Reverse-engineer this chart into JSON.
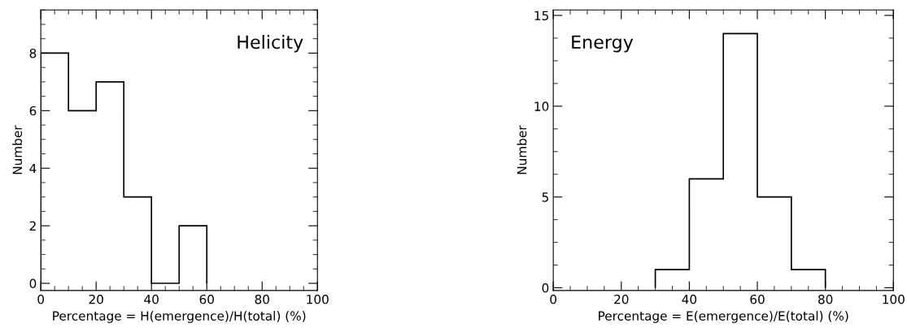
{
  "chart_data": [
    {
      "type": "histogram",
      "xlabel": "Percentage = H(emergence)/H(total) (%)",
      "ylabel": "Number",
      "annotations": [
        "Helicity"
      ],
      "bins": [
        0,
        10,
        20,
        30,
        40,
        50,
        60
      ],
      "values": [
        8,
        6,
        7,
        3,
        0,
        2
      ],
      "color": "#000000",
      "xlim": [
        0,
        100
      ],
      "xticks": [
        0,
        20,
        40,
        60,
        80,
        100
      ],
      "ylim": [
        -0.25,
        9.5
      ],
      "yticks": [
        0,
        2,
        4,
        6,
        8
      ],
      "grid": false
    },
    {
      "type": "histogram",
      "xlabel": "Percentage = E(emergence)/E(total) (%)",
      "ylabel": "Number",
      "annotations": [
        "Energy"
      ],
      "bins": [
        30,
        40,
        50,
        60,
        70,
        80
      ],
      "values": [
        1,
        6,
        14,
        5,
        1
      ],
      "color": "#000000",
      "xlim": [
        0,
        100
      ],
      "xticks": [
        0,
        20,
        40,
        60,
        80,
        100
      ],
      "ylim": [
        -0.15,
        15.3
      ],
      "yticks": [
        0,
        5,
        10,
        15
      ],
      "grid": false
    }
  ]
}
